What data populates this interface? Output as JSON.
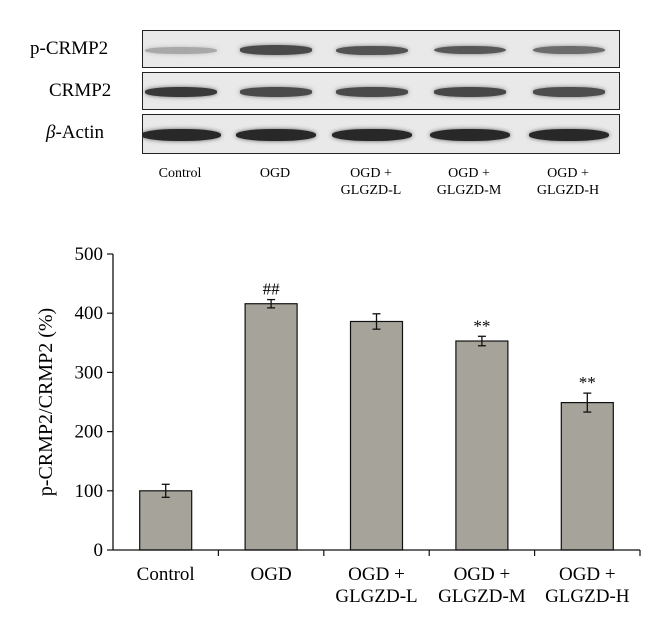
{
  "blot": {
    "rows": [
      {
        "label": "p-CRMP2"
      },
      {
        "label": "CRMP2"
      },
      {
        "label_italic": "β",
        "label_rest": "-Actin"
      }
    ],
    "band_intensity": {
      "p-CRMP2": [
        0.25,
        0.8,
        0.75,
        0.72,
        0.6
      ],
      "CRMP2": [
        0.9,
        0.8,
        0.8,
        0.82,
        0.78
      ],
      "beta-Actin": [
        1.0,
        1.0,
        1.0,
        1.0,
        1.0
      ]
    },
    "lanes": [
      "Control",
      "OGD",
      "OGD +\nGLGZD-L",
      "OGD +\nGLGZD-M",
      "OGD +\nGLGZD-H"
    ]
  },
  "chart_data": {
    "type": "bar",
    "categories": [
      "Control",
      "OGD",
      "OGD +\nGLGZD-L",
      "OGD +\nGLGZD-M",
      "OGD +\nGLGZD-H"
    ],
    "values": [
      100,
      416,
      386,
      353,
      249
    ],
    "errors": [
      11,
      7,
      13,
      8,
      16
    ],
    "annotations": [
      "",
      "##",
      "",
      "**",
      "**"
    ],
    "ylabel": "p-CRMP2/CRMP2 (%)",
    "xlabel": "",
    "ylim": [
      0,
      500
    ],
    "yticks": [
      0,
      100,
      200,
      300,
      400,
      500
    ],
    "bar_color": "#a6a39b",
    "grid": false
  }
}
